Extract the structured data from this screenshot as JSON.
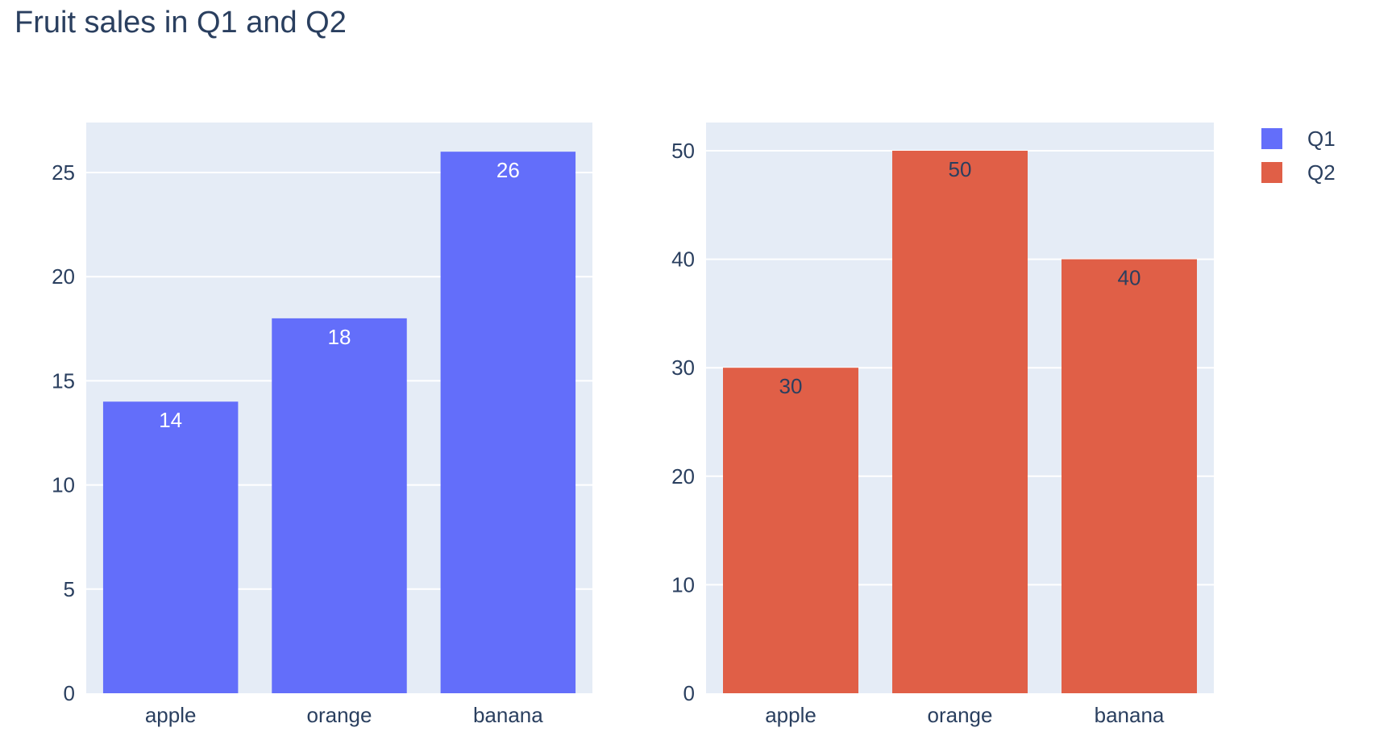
{
  "chart_data": {
    "title": "Fruit sales in Q1 and Q2",
    "legend_position": "top-right",
    "subplots": [
      {
        "type": "bar",
        "categories": [
          "apple",
          "orange",
          "banana"
        ],
        "series": [
          {
            "name": "Q1",
            "values": [
              14,
              18,
              26
            ],
            "color": "#636efa",
            "label_color": "#ffffff"
          }
        ],
        "ylim": [
          0,
          27.4
        ],
        "yticks": [
          0,
          5,
          10,
          15,
          20,
          25
        ],
        "grid": true
      },
      {
        "type": "bar",
        "categories": [
          "apple",
          "orange",
          "banana"
        ],
        "series": [
          {
            "name": "Q2",
            "values": [
              30,
              50,
              40
            ],
            "color": "#e05f47",
            "label_color": "#2a3f5f"
          }
        ],
        "ylim": [
          0,
          52.6
        ],
        "yticks": [
          0,
          10,
          20,
          30,
          40,
          50
        ],
        "grid": true
      }
    ],
    "legend": [
      {
        "name": "Q1",
        "color": "#636efa"
      },
      {
        "name": "Q2",
        "color": "#e05f47"
      }
    ]
  },
  "colors": {
    "plot_bg": "#e5ecf6",
    "grid": "#ffffff",
    "text": "#2a3f5f"
  }
}
